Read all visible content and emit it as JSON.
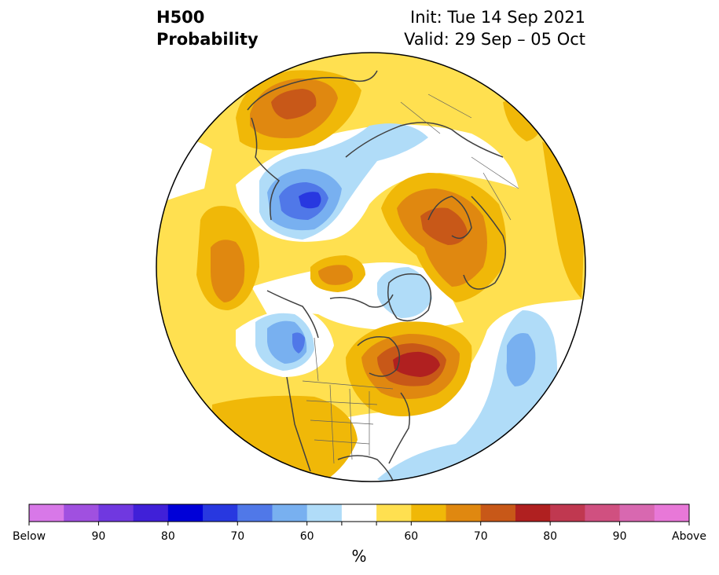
{
  "header": {
    "variable": "H500",
    "product": "Probability",
    "init": "Init: Tue 14 Sep 2021",
    "valid": "Valid: 29 Sep – 05 Oct"
  },
  "colorbar": {
    "unit": "%",
    "colors": [
      "#d878e8",
      "#a050e0",
      "#7038e0",
      "#4020d8",
      "#0000d8",
      "#2838e0",
      "#5078e8",
      "#78b0f0",
      "#b0dcf8",
      "#ffffff",
      "#ffe050",
      "#f0b808",
      "#e08810",
      "#c85818",
      "#b02020",
      "#c03850",
      "#d05080",
      "#d868b0",
      "#e878d8"
    ],
    "tick_labels": [
      "Below",
      "90",
      "80",
      "70",
      "60",
      "",
      "",
      "60",
      "70",
      "80",
      "90",
      "Above"
    ]
  },
  "map": {
    "projection": "north-polar-stereographic",
    "anomalies": [
      {
        "region": "Northeast Asia / Siberia",
        "sign": "above",
        "max_category": "70"
      },
      {
        "region": "Bering Sea / Alaska",
        "sign": "below",
        "max_category": "80"
      },
      {
        "region": "Scandinavia / Barents Sea",
        "sign": "above",
        "max_category": "70"
      },
      {
        "region": "Arctic Ocean",
        "sign": "above",
        "max_category": "60"
      },
      {
        "region": "North Pacific",
        "sign": "above",
        "max_category": "70"
      },
      {
        "region": "Gulf of Alaska",
        "sign": "below",
        "max_category": "70"
      },
      {
        "region": "Hudson Bay / Eastern Canada",
        "sign": "above",
        "max_category": "80"
      },
      {
        "region": "North Atlantic",
        "sign": "below",
        "max_category": "60"
      },
      {
        "region": "Greenland",
        "sign": "below",
        "max_category": "60"
      }
    ]
  }
}
